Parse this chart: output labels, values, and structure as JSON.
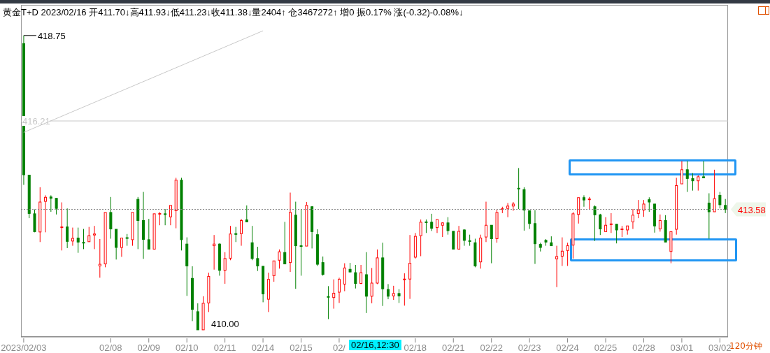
{
  "chart_data": {
    "type": "candlestick",
    "title": "黄金T+D 2023/02/16 开411.70↓高411.93↓低411.23↓收411.38↓量2404↑ 仓3467272↑ 增0 振0.17% 涨(-0.32)-0.08%↓",
    "categories": [
      "2023/02/03",
      null,
      null,
      null,
      null,
      null,
      null,
      null,
      null,
      null,
      null,
      null,
      null,
      null,
      null,
      null,
      "02/08",
      null,
      null,
      null,
      null,
      null,
      null,
      "02/09",
      null,
      null,
      null,
      null,
      null,
      null,
      "02/10",
      null,
      null,
      null,
      null,
      null,
      null,
      "02/11",
      null,
      null,
      null,
      null,
      null,
      null,
      "02/14",
      null,
      null,
      null,
      null,
      null,
      null,
      "02/15",
      null,
      null,
      null,
      null,
      null,
      null,
      "02/",
      null,
      null,
      null,
      null,
      null,
      null,
      null,
      null,
      null,
      null,
      null,
      null,
      null,
      "02/18",
      null,
      null,
      null,
      null,
      null,
      null,
      "02/21",
      null,
      null,
      null,
      null,
      null,
      null,
      "02/22",
      null,
      null,
      null,
      null,
      null,
      null,
      "02/23",
      null,
      null,
      null,
      null,
      null,
      null,
      "02/24",
      null,
      null,
      null,
      null,
      null,
      null,
      "02/25",
      null,
      null,
      null,
      null,
      null,
      null,
      "02/28",
      null,
      null,
      null,
      null,
      null,
      null,
      "03/01",
      null,
      null,
      null,
      null,
      null,
      null,
      "03/02",
      null
    ],
    "ohlc": [
      [
        418.51,
        418.75,
        414.31,
        414.61
      ],
      [
        414.6,
        414.6,
        413.32,
        413.46
      ],
      [
        413.45,
        413.58,
        412.9,
        412.92
      ],
      [
        412.91,
        414.24,
        412.61,
        413.8
      ],
      [
        413.82,
        414.0,
        412.9,
        413.94
      ],
      [
        413.95,
        414.0,
        413.51,
        413.91
      ],
      [
        413.91,
        413.91,
        413.43,
        413.61
      ],
      [
        413.05,
        413.79,
        412.36,
        413.06
      ],
      [
        413.06,
        413.61,
        412.43,
        412.63
      ],
      [
        412.64,
        413.04,
        412.5,
        412.72
      ],
      [
        412.73,
        413.04,
        412.29,
        412.61
      ],
      [
        412.6,
        413.0,
        412.4,
        412.59
      ],
      [
        412.62,
        413.06,
        412.62,
        412.8
      ],
      [
        412.82,
        413.09,
        412.4,
        412.85
      ],
      [
        411.9,
        412.7,
        411.55,
        411.95
      ],
      [
        411.96,
        413.49,
        411.86,
        413.49
      ],
      [
        413.49,
        413.95,
        412.71,
        413.0
      ],
      [
        412.99,
        412.99,
        412.09,
        412.45
      ],
      [
        412.45,
        412.73,
        412.17,
        412.73
      ],
      [
        412.74,
        412.85,
        412.5,
        412.73
      ],
      [
        412.68,
        413.49,
        412.5,
        413.49
      ],
      [
        413.88,
        413.95,
        412.4,
        413.25
      ],
      [
        413.25,
        414.1,
        412.11,
        412.69
      ],
      [
        412.68,
        413.3,
        412.4,
        412.4
      ],
      [
        412.4,
        413.45,
        412.4,
        413.45
      ],
      [
        413.45,
        413.5,
        413.11,
        413.46
      ],
      [
        413.45,
        413.59,
        413.11,
        413.44
      ],
      [
        413.36,
        413.7,
        413.11,
        413.7
      ],
      [
        413.54,
        414.52,
        413.02,
        414.45
      ],
      [
        414.45,
        414.52,
        412.36,
        412.68
      ],
      [
        412.55,
        412.75,
        411.01,
        411.9
      ],
      [
        411.53,
        411.89,
        410.26,
        410.61
      ],
      [
        410.54,
        410.79,
        410.0,
        410.0
      ],
      [
        410.0,
        411.0,
        410.0,
        410.79
      ],
      [
        410.8,
        411.7,
        410.53,
        411.59
      ],
      [
        412.5,
        412.82,
        411.79,
        412.55
      ],
      [
        412.55,
        412.57,
        411.61,
        411.77
      ],
      [
        411.77,
        412.31,
        411.37,
        412.12
      ],
      [
        412.13,
        413.09,
        412.07,
        412.85
      ],
      [
        412.86,
        413.06,
        412.61,
        412.85
      ],
      [
        412.86,
        413.3,
        412.5,
        413.25
      ],
      [
        413.27,
        413.7,
        413.21,
        413.21
      ],
      [
        412.59,
        413.09,
        412.07,
        412.12
      ],
      [
        412.12,
        412.47,
        411.75,
        411.9
      ],
      [
        411.89,
        411.89,
        410.82,
        411.07
      ],
      [
        410.91,
        411.7,
        410.53,
        411.5
      ],
      [
        411.61,
        412.05,
        411.43,
        412.05
      ],
      [
        412.07,
        412.39,
        411.82,
        412.32
      ],
      [
        412.3,
        413.21,
        411.96,
        411.96
      ],
      [
        412.0,
        414.08,
        411.72,
        413.49
      ],
      [
        413.41,
        413.81,
        411.22,
        412.5
      ],
      [
        412.5,
        413.59,
        411.61,
        412.49
      ],
      [
        412.49,
        413.8,
        412.49,
        413.7
      ],
      [
        413.66,
        413.68,
        412.42,
        412.92
      ],
      [
        412.83,
        412.99,
        411.9,
        411.95
      ],
      [
        412.0,
        412.18,
        411.61,
        411.65
      ],
      [
        410.99,
        411.3,
        410.32,
        410.98
      ],
      [
        410.96,
        411.5,
        410.63,
        411.09
      ],
      [
        411.12,
        411.55,
        410.8,
        411.5
      ],
      [
        411.36,
        411.98,
        411.15,
        411.84
      ],
      [
        411.8,
        411.99,
        411.72,
        411.72
      ],
      [
        411.7,
        411.93,
        411.23,
        411.38
      ],
      [
        411.38,
        411.93,
        411.36,
        411.7
      ],
      [
        411.64,
        412.31,
        410.5,
        411.0
      ],
      [
        411.0,
        411.84,
        410.79,
        411.39
      ],
      [
        411.39,
        412.39,
        411.36,
        412.14
      ],
      [
        412.14,
        412.59,
        410.71,
        411.22
      ],
      [
        411.2,
        411.36,
        410.91,
        411.0
      ],
      [
        411.01,
        411.31,
        410.89,
        411.08
      ],
      [
        411.08,
        411.21,
        410.8,
        411.01
      ],
      [
        411.5,
        411.68,
        410.72,
        411.51
      ],
      [
        411.51,
        412.82,
        410.92,
        411.98
      ],
      [
        412.16,
        412.88,
        412.12,
        412.78
      ],
      [
        412.8,
        413.28,
        412.19,
        413.2
      ],
      [
        413.21,
        413.28,
        412.88,
        413.2
      ],
      [
        413.2,
        413.45,
        412.94,
        413.02
      ],
      [
        413.04,
        413.28,
        412.88,
        413.28
      ],
      [
        413.11,
        413.2,
        412.76,
        413.18
      ],
      [
        413.18,
        413.35,
        412.83,
        412.95
      ],
      [
        412.93,
        412.93,
        412.4,
        412.4
      ],
      [
        412.4,
        413.09,
        412.4,
        412.93
      ],
      [
        412.97,
        412.99,
        412.5,
        412.66
      ],
      [
        412.65,
        412.83,
        412.5,
        412.64
      ],
      [
        412.59,
        412.71,
        411.86,
        411.9
      ],
      [
        412.02,
        412.83,
        411.82,
        412.73
      ],
      [
        412.76,
        413.81,
        412.61,
        413.11
      ],
      [
        413.11,
        413.11,
        411.98,
        412.71
      ],
      [
        412.71,
        413.58,
        412.59,
        413.49
      ],
      [
        413.59,
        413.66,
        413.47,
        413.6
      ],
      [
        413.61,
        413.77,
        413.35,
        413.68
      ],
      [
        413.68,
        413.8,
        413.54,
        413.74
      ],
      [
        414.21,
        414.81,
        413.59,
        414.2
      ],
      [
        414.17,
        414.24,
        412.95,
        413.56
      ],
      [
        413.54,
        413.54,
        413.0,
        413.16
      ],
      [
        413.16,
        413.56,
        411.96,
        412.56
      ],
      [
        412.54,
        412.59,
        412.33,
        412.45
      ],
      [
        412.66,
        412.7,
        412.5,
        412.61
      ],
      [
        412.59,
        412.78,
        412.5,
        412.5
      ],
      [
        412.11,
        412.5,
        411.27,
        412.18
      ],
      [
        412.19,
        412.75,
        411.9,
        412.34
      ],
      [
        412.36,
        412.59,
        411.9,
        412.5
      ],
      [
        412.52,
        413.5,
        412.12,
        413.45
      ],
      [
        413.43,
        413.93,
        413.16,
        413.93
      ],
      [
        413.93,
        414.0,
        413.66,
        413.86
      ],
      [
        413.88,
        413.95,
        413.59,
        413.89
      ],
      [
        413.66,
        413.7,
        412.64,
        413.42
      ],
      [
        413.42,
        413.45,
        412.82,
        413.0
      ],
      [
        412.92,
        413.35,
        412.92,
        413.11
      ],
      [
        413.14,
        413.47,
        412.88,
        413.15
      ],
      [
        413.14,
        413.14,
        412.57,
        412.97
      ],
      [
        412.99,
        413.09,
        412.76,
        413.0
      ],
      [
        412.97,
        413.09,
        412.83,
        413.09
      ],
      [
        413.21,
        413.59,
        413.0,
        413.41
      ],
      [
        413.46,
        413.86,
        413.32,
        413.56
      ],
      [
        413.56,
        413.86,
        413.36,
        413.74
      ],
      [
        413.87,
        413.94,
        413.51,
        413.8
      ],
      [
        413.74,
        413.74,
        412.89,
        413.09
      ],
      [
        413.0,
        413.43,
        412.92,
        413.25
      ],
      [
        413.25,
        413.41,
        412.61,
        412.61
      ],
      [
        412.33,
        412.92,
        411.98,
        412.92
      ],
      [
        412.99,
        414.52,
        412.83,
        414.29
      ],
      [
        414.34,
        415.02,
        414.34,
        414.76
      ],
      [
        414.76,
        415.02,
        414.1,
        414.5
      ],
      [
        414.5,
        414.66,
        414.14,
        414.43
      ],
      [
        414.43,
        414.59,
        414.14,
        414.55
      ],
      [
        414.55,
        415.02,
        414.52,
        414.52
      ],
      [
        413.77,
        414.06,
        412.71,
        413.51
      ],
      [
        413.51,
        414.76,
        413.51,
        413.9
      ],
      [
        414.0,
        414.1,
        413.61,
        413.72
      ],
      [
        413.7,
        413.89,
        413.47,
        413.58
      ]
    ],
    "series": [
      {
        "type": "line",
        "color": "#c8c8c8",
        "x": [
          "2023/02/03",
          "02/14"
        ],
        "values": [
          415.87,
          418.89
        ]
      }
    ],
    "ylim": [
      409.79,
      419.66
    ],
    "ref_lines": [
      {
        "axis": "y",
        "value": 416.21,
        "label": "416.21",
        "color": "#c8c8c8",
        "line_style": "solid"
      },
      {
        "axis": "y",
        "value": 413.58,
        "label": "413.58",
        "color": "#808080",
        "line_style": "dotted"
      }
    ],
    "annotations": [
      {
        "text": "418.75",
        "x": "2023/02/03",
        "y": 418.75
      },
      "410.00",
      "02/16,12:30",
      "120分钟"
    ]
  }
}
